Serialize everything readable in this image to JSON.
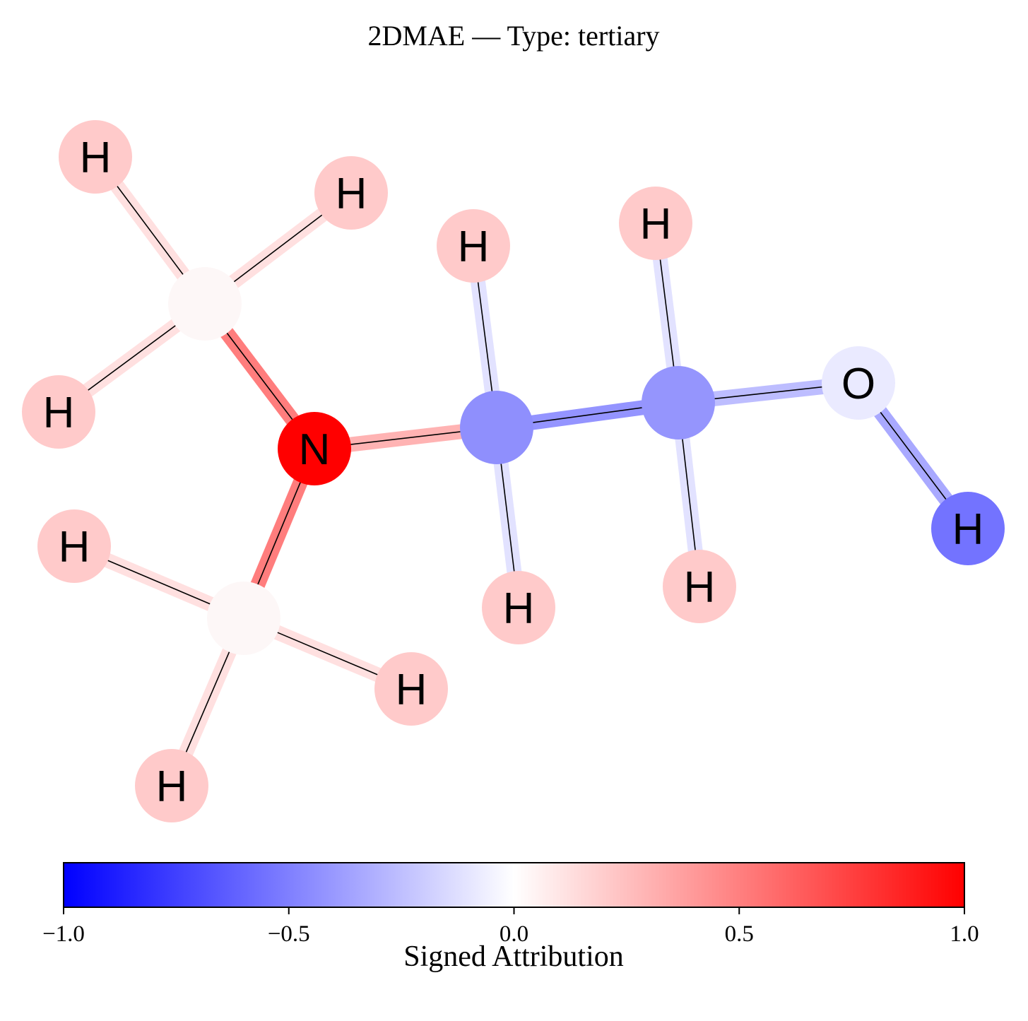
{
  "title": "2DMAE — Type: tertiary",
  "colorbar": {
    "label": "Signed Attribution",
    "ticks": [
      "−1.0",
      "−0.5",
      "0.0",
      "0.5",
      "1.0"
    ],
    "range": [
      -1.0,
      1.0
    ],
    "colormap": "bwr",
    "low_color": "#0000ff",
    "mid_color": "#ffffff",
    "high_color": "#ff0000"
  },
  "atoms": [
    {
      "id": "N1",
      "element": "N",
      "label": "N",
      "color": "#ff0000"
    },
    {
      "id": "C1",
      "element": "C",
      "label": "",
      "color": "#fdf7f7"
    },
    {
      "id": "C2",
      "element": "C",
      "label": "",
      "color": "#fdf7f7"
    },
    {
      "id": "C3",
      "element": "C",
      "label": "",
      "color": "#8f8ffd"
    },
    {
      "id": "C4",
      "element": "C",
      "label": "",
      "color": "#9595fd"
    },
    {
      "id": "O1",
      "element": "O",
      "label": "O",
      "color": "#eaeaff"
    },
    {
      "id": "H1",
      "element": "H",
      "label": "H",
      "color": "#ffcaca"
    },
    {
      "id": "H2",
      "element": "H",
      "label": "H",
      "color": "#ffcaca"
    },
    {
      "id": "H3",
      "element": "H",
      "label": "H",
      "color": "#ffcaca"
    },
    {
      "id": "H4",
      "element": "H",
      "label": "H",
      "color": "#ffcaca"
    },
    {
      "id": "H5",
      "element": "H",
      "label": "H",
      "color": "#ffcaca"
    },
    {
      "id": "H6",
      "element": "H",
      "label": "H",
      "color": "#ffcaca"
    },
    {
      "id": "H7",
      "element": "H",
      "label": "H",
      "color": "#ffcaca"
    },
    {
      "id": "H8",
      "element": "H",
      "label": "H",
      "color": "#ffcaca"
    },
    {
      "id": "H9",
      "element": "H",
      "label": "H",
      "color": "#ffcaca"
    },
    {
      "id": "H10",
      "element": "H",
      "label": "H",
      "color": "#ffcaca"
    },
    {
      "id": "H11",
      "element": "H",
      "label": "H",
      "color": "#7373ff"
    }
  ],
  "bonds": [
    {
      "id": "C1-H1",
      "from": "C1",
      "to": "H1",
      "color": "#ffe0e0"
    },
    {
      "id": "C1-H2",
      "from": "C1",
      "to": "H2",
      "color": "#ffe0e0"
    },
    {
      "id": "C1-H3",
      "from": "C1",
      "to": "H3",
      "color": "#ffe0e0"
    },
    {
      "id": "C1-N1",
      "from": "C1",
      "to": "N1",
      "color": "#ff7d7d"
    },
    {
      "id": "N1-C2",
      "from": "N1",
      "to": "C2",
      "color": "#ff7d7d"
    },
    {
      "id": "C2-H4",
      "from": "C2",
      "to": "H4",
      "color": "#ffe0e0"
    },
    {
      "id": "C2-H5",
      "from": "C2",
      "to": "H5",
      "color": "#ffe0e0"
    },
    {
      "id": "C2-H6",
      "from": "C2",
      "to": "H6",
      "color": "#ffe0e0"
    },
    {
      "id": "N1-C3",
      "from": "N1",
      "to": "C3",
      "color": "#ffb3b3"
    },
    {
      "id": "C3-H7",
      "from": "C3",
      "to": "H7",
      "color": "#e2e2ff"
    },
    {
      "id": "C3-H8",
      "from": "C3",
      "to": "H8",
      "color": "#e2e2ff"
    },
    {
      "id": "C3-C4",
      "from": "C3",
      "to": "C4",
      "color": "#9494ff"
    },
    {
      "id": "C4-H9",
      "from": "C4",
      "to": "H9",
      "color": "#e2e2ff"
    },
    {
      "id": "C4-H10",
      "from": "C4",
      "to": "H10",
      "color": "#e2e2ff"
    },
    {
      "id": "C4-O1",
      "from": "C4",
      "to": "O1",
      "color": "#bdbdff"
    },
    {
      "id": "O1-H11",
      "from": "O1",
      "to": "H11",
      "color": "#a9a9ff"
    }
  ]
}
